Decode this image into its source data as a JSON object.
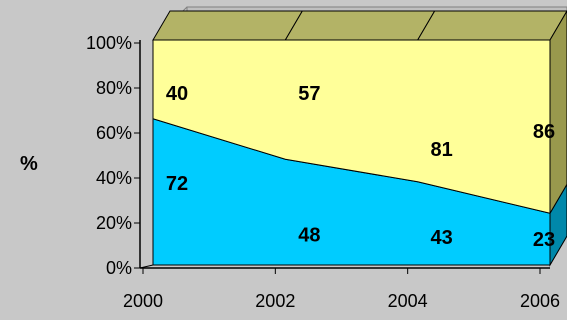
{
  "chart_data": {
    "type": "area",
    "stacking": "percent",
    "view": "3d",
    "ylabel": "%",
    "x_ticks": [
      "2000",
      "2002",
      "2004",
      "2006"
    ],
    "y_ticks": [
      "0%",
      "20%",
      "40%",
      "60%",
      "80%",
      "100%"
    ],
    "ylim": [
      0,
      100
    ],
    "x": [
      2000,
      2002,
      2004,
      2006
    ],
    "series": [
      {
        "color": "#00ccff",
        "values": [
          65,
          47,
          37,
          23
        ]
      },
      {
        "color": "#ffff99",
        "values": [
          35,
          53,
          63,
          77
        ]
      }
    ],
    "data_labels": [
      {
        "x": 2000,
        "y": 37,
        "text": "72",
        "series": 0
      },
      {
        "x": 2002,
        "y": 14,
        "text": "48",
        "series": 0
      },
      {
        "x": 2004,
        "y": 13,
        "text": "43",
        "series": 0
      },
      {
        "x": 2006,
        "y": 12,
        "text": "23",
        "series": 0
      },
      {
        "x": 2000,
        "y": 77,
        "text": "40",
        "series": 1
      },
      {
        "x": 2002,
        "y": 77,
        "text": "57",
        "series": 1
      },
      {
        "x": 2004,
        "y": 52,
        "text": "81",
        "series": 1
      },
      {
        "x": 2006,
        "y": 60,
        "text": "86",
        "series": 1
      }
    ],
    "grid": false,
    "legend": "none"
  }
}
